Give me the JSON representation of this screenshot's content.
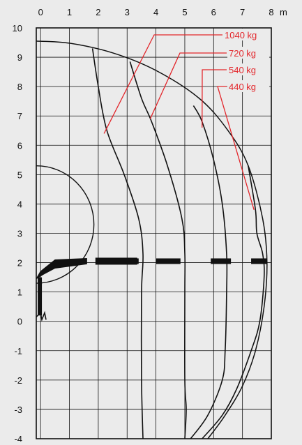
{
  "chart_data": {
    "type": "load-range-diagram",
    "x_unit": "m",
    "x_ticks": [
      "0",
      "1",
      "2",
      "3",
      "4",
      "5",
      "6",
      "7",
      "8"
    ],
    "y_ticks": [
      "10",
      "9",
      "8",
      "7",
      "6",
      "5",
      "4",
      "3",
      "2",
      "1",
      "0",
      "-1",
      "-2",
      "-3",
      "-4"
    ],
    "xlim": [
      -0.15,
      8.0
    ],
    "ylim": [
      -4,
      10
    ],
    "grid": true,
    "colors": {
      "curve": "#111111",
      "label": "#e3262b",
      "grid": "#111111",
      "background": "#ebebeb"
    },
    "load_labels": [
      {
        "text": "1040 kg",
        "anchor_x": 2.2,
        "anchor_y": 6.4
      },
      {
        "text": "720 kg",
        "anchor_x": 3.8,
        "anchor_y": 6.9
      },
      {
        "text": "540 kg",
        "anchor_x": 5.6,
        "anchor_y": 6.6
      },
      {
        "text": "440 kg",
        "anchor_x": 7.4,
        "anchor_y": 3.8
      }
    ],
    "envelope": [
      [
        -0.15,
        9.55
      ],
      [
        1.0,
        9.48
      ],
      [
        2.5,
        9.15
      ],
      [
        4.0,
        8.55
      ],
      [
        5.5,
        7.6
      ],
      [
        6.5,
        6.5
      ],
      [
        7.2,
        5.3
      ],
      [
        7.7,
        3.5
      ],
      [
        7.85,
        2.0
      ],
      [
        7.75,
        0.5
      ],
      [
        7.45,
        -1.0
      ],
      [
        7.0,
        -2.2
      ],
      [
        6.4,
        -3.2
      ],
      [
        5.8,
        -4.0
      ]
    ],
    "load_curves": [
      {
        "load": "1040 kg",
        "points": [
          [
            1.8,
            9.3
          ],
          [
            2.0,
            8.0
          ],
          [
            2.3,
            6.5
          ],
          [
            2.9,
            5.0
          ],
          [
            3.4,
            3.5
          ],
          [
            3.55,
            2.3
          ],
          [
            3.5,
            1.0
          ],
          [
            3.5,
            -2.0
          ],
          [
            3.55,
            -4.0
          ]
        ]
      },
      {
        "load": "720 kg",
        "points": [
          [
            3.1,
            8.85
          ],
          [
            3.5,
            7.6
          ],
          [
            3.85,
            6.8
          ],
          [
            4.4,
            5.3
          ],
          [
            4.9,
            3.5
          ],
          [
            5.0,
            2.3
          ],
          [
            5.0,
            1.0
          ],
          [
            5.0,
            -2.0
          ],
          [
            5.05,
            -3.0
          ],
          [
            5.0,
            -4.0
          ]
        ]
      },
      {
        "load": "540 kg",
        "points": [
          [
            5.3,
            7.35
          ],
          [
            5.6,
            6.8
          ],
          [
            6.0,
            5.5
          ],
          [
            6.3,
            4.0
          ],
          [
            6.45,
            2.3
          ],
          [
            6.45,
            1.0
          ],
          [
            6.4,
            -1.0
          ],
          [
            6.3,
            -2.0
          ],
          [
            5.8,
            -3.2
          ],
          [
            5.2,
            -4.0
          ]
        ]
      },
      {
        "load": "440 kg",
        "points": [
          [
            7.2,
            5.3
          ],
          [
            7.45,
            3.8
          ],
          [
            7.5,
            3.0
          ],
          [
            7.7,
            2.3
          ],
          [
            7.75,
            1.5
          ],
          [
            7.6,
            0.0
          ],
          [
            7.3,
            -1.0
          ],
          [
            6.8,
            -2.3
          ],
          [
            6.3,
            -3.2
          ],
          [
            5.6,
            -4.0
          ]
        ]
      }
    ],
    "inner_arc": {
      "cx": -0.15,
      "cy": 3.3,
      "r": 2.0
    },
    "boom_positions": [
      [
        2.0,
        3.4
      ],
      [
        4.0,
        4.85
      ],
      [
        5.9,
        6.6
      ],
      [
        7.3,
        7.85
      ]
    ],
    "boom_y": 2.05
  }
}
